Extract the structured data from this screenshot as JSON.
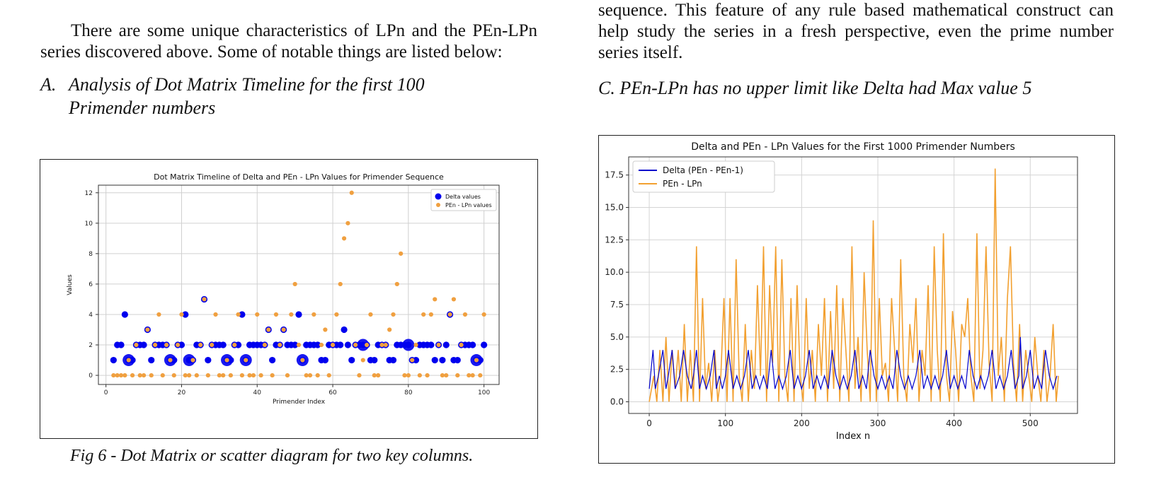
{
  "left_column": {
    "paragraph": "There are some unique characteristics of LPn and the PEn-LPn series discovered above. Some of notable things are listed below:",
    "heading_a_letter": "A.",
    "heading_a_line1": "Analysis of Dot Matrix Timeline for the first 100",
    "heading_a_line2": "Primender numbers",
    "caption": "Fig 6 -  Dot Matrix or scatter diagram for two key columns."
  },
  "right_column": {
    "paragraph": "sequence. This feature of any rule based mathematical construct can help study the series in a fresh perspective, even the prime number series itself.",
    "heading_c": "C.  PEn-LPn has no upper limit like Delta had Max value 5"
  },
  "chart_data": [
    {
      "type": "scatter",
      "title": "Dot Matrix Timeline of Delta and PEn - LPn Values for Primender Sequence",
      "xlabel": "Primender Index",
      "ylabel": "Values",
      "xlim": [
        -2,
        104
      ],
      "ylim": [
        -0.6,
        12.5
      ],
      "xticks": [
        0,
        20,
        40,
        60,
        80,
        100
      ],
      "yticks": [
        0,
        2,
        4,
        6,
        8,
        10,
        12
      ],
      "legend": "top-right",
      "grid": true,
      "series": [
        {
          "name": "Delta values",
          "color": "#0000ee",
          "x": [
            2,
            3,
            4,
            5,
            6,
            7,
            8,
            9,
            10,
            11,
            12,
            13,
            14,
            15,
            16,
            17,
            18,
            19,
            20,
            21,
            22,
            23,
            24,
            25,
            26,
            27,
            28,
            29,
            30,
            31,
            32,
            33,
            34,
            35,
            36,
            37,
            38,
            39,
            40,
            41,
            42,
            43,
            44,
            45,
            46,
            47,
            48,
            49,
            50,
            51,
            52,
            53,
            54,
            55,
            56,
            57,
            58,
            59,
            60,
            61,
            62,
            63,
            64,
            65,
            66,
            67,
            68,
            69,
            70,
            71,
            72,
            73,
            74,
            75,
            76,
            77,
            78,
            79,
            80,
            81,
            82,
            83,
            84,
            85,
            86,
            87,
            88,
            89,
            90,
            91,
            92,
            93,
            94,
            95,
            96,
            97,
            98,
            99,
            100
          ],
          "values": [
            1,
            2,
            2,
            4,
            1,
            1,
            2,
            2,
            2,
            3,
            1,
            2,
            2,
            2,
            2,
            1,
            1,
            2,
            2,
            4,
            1,
            1,
            2,
            2,
            5,
            1,
            2,
            2,
            2,
            2,
            1,
            1,
            2,
            2,
            4,
            1,
            2,
            2,
            2,
            2,
            2,
            3,
            1,
            2,
            2,
            3,
            2,
            2,
            2,
            4,
            1,
            2,
            2,
            2,
            2,
            1,
            1,
            2,
            2,
            2,
            2,
            3,
            2,
            1,
            2,
            2,
            2,
            2,
            1,
            1,
            2,
            2,
            2,
            1,
            1,
            2,
            2,
            2,
            2,
            1,
            1,
            2,
            2,
            2,
            2,
            1,
            2,
            1,
            2,
            4,
            1,
            1,
            2,
            2,
            2,
            2,
            1,
            1,
            2
          ],
          "big_rings_x": [
            6,
            17,
            22,
            32,
            37,
            52,
            68,
            80,
            98
          ]
        },
        {
          "name": "PEn - LPn values",
          "color": "#f0a040",
          "x": [
            2,
            3,
            4,
            5,
            6,
            7,
            8,
            9,
            10,
            11,
            12,
            13,
            14,
            15,
            16,
            17,
            18,
            19,
            20,
            21,
            22,
            23,
            24,
            25,
            26,
            27,
            28,
            29,
            30,
            31,
            32,
            33,
            34,
            35,
            36,
            37,
            38,
            39,
            40,
            41,
            42,
            43,
            44,
            45,
            46,
            47,
            48,
            49,
            50,
            51,
            52,
            53,
            54,
            55,
            56,
            57,
            58,
            59,
            60,
            61,
            62,
            63,
            64,
            65,
            66,
            67,
            68,
            69,
            70,
            71,
            72,
            73,
            74,
            75,
            76,
            77,
            78,
            79,
            80,
            81,
            82,
            83,
            84,
            85,
            86,
            87,
            88,
            89,
            90,
            91,
            92,
            93,
            94,
            95,
            96,
            97,
            98,
            99,
            100
          ],
          "values": [
            0,
            0,
            0,
            0,
            1,
            0,
            2,
            0,
            0,
            3,
            0,
            2,
            4,
            0,
            2,
            1,
            0,
            2,
            4,
            0,
            0,
            1,
            0,
            2,
            5,
            0,
            2,
            4,
            0,
            0,
            1,
            0,
            2,
            4,
            0,
            1,
            0,
            0,
            4,
            0,
            2,
            3,
            0,
            4,
            2,
            3,
            0,
            4,
            6,
            2,
            1,
            0,
            0,
            4,
            0,
            2,
            3,
            0,
            2,
            4,
            6,
            9,
            10,
            12,
            2,
            0,
            1,
            2,
            4,
            0,
            0,
            2,
            2,
            3,
            4,
            6,
            8,
            0,
            0,
            1,
            2,
            0,
            4,
            0,
            4,
            5,
            2,
            0,
            0,
            4,
            5,
            0,
            2,
            4,
            0,
            0,
            1,
            0,
            4
          ]
        }
      ]
    },
    {
      "type": "line",
      "title": "Delta and PEn - LPn Values for the First 1000 Primender Numbers",
      "xlabel": "Index n",
      "ylabel": "",
      "xlim": [
        -27,
        562
      ],
      "ylim": [
        -0.9,
        18.9
      ],
      "xticks": [
        0,
        100,
        200,
        300,
        400,
        500
      ],
      "yticks": [
        0.0,
        2.5,
        5.0,
        7.5,
        10.0,
        12.5,
        15.0,
        17.5
      ],
      "legend": "top-left",
      "grid": true,
      "series": [
        {
          "name": "Delta (PEn - PEn-1)",
          "color": "#0000cc",
          "x": [
            0,
            5,
            8,
            12,
            18,
            22,
            25,
            30,
            34,
            40,
            45,
            50,
            55,
            58,
            62,
            66,
            70,
            75,
            80,
            85,
            88,
            92,
            96,
            100,
            104,
            110,
            115,
            120,
            125,
            130,
            135,
            140,
            145,
            150,
            155,
            160,
            165,
            170,
            175,
            180,
            185,
            190,
            195,
            200,
            205,
            210,
            215,
            220,
            225,
            230,
            235,
            240,
            245,
            250,
            255,
            260,
            265,
            270,
            275,
            280,
            285,
            290,
            295,
            300,
            305,
            310,
            315,
            320,
            325,
            330,
            335,
            340,
            345,
            350,
            355,
            360,
            365,
            370,
            375,
            380,
            385,
            390,
            395,
            400,
            405,
            410,
            415,
            420,
            425,
            430,
            435,
            440,
            445,
            450,
            455,
            460,
            465,
            470,
            475,
            480,
            485,
            487,
            490,
            495,
            500,
            505,
            510,
            515,
            520,
            525,
            530,
            535
          ],
          "values": [
            1,
            4,
            1,
            2,
            4,
            1,
            2,
            4,
            1,
            2,
            4,
            2,
            1,
            2,
            4,
            1,
            2,
            1,
            2,
            4,
            1,
            2,
            1,
            2,
            4,
            1,
            2,
            1,
            2,
            4,
            1,
            2,
            1,
            2,
            1,
            4,
            1,
            2,
            1,
            2,
            4,
            1,
            2,
            1,
            2,
            4,
            1,
            2,
            1,
            2,
            1,
            4,
            2,
            1,
            2,
            1,
            2,
            4,
            1,
            2,
            1,
            4,
            2,
            1,
            2,
            1,
            2,
            1,
            4,
            2,
            1,
            2,
            1,
            2,
            4,
            1,
            2,
            1,
            2,
            1,
            2,
            4,
            1,
            2,
            1,
            2,
            1,
            4,
            2,
            1,
            2,
            1,
            2,
            4,
            1,
            2,
            1,
            2,
            4,
            1,
            2,
            5,
            1,
            2,
            4,
            1,
            2,
            1,
            4,
            2,
            1,
            2
          ]
        },
        {
          "name": "PEn - LPn",
          "color": "#f2a030",
          "x": [
            0,
            6,
            10,
            14,
            18,
            22,
            26,
            30,
            34,
            38,
            42,
            46,
            50,
            54,
            58,
            62,
            66,
            70,
            74,
            78,
            82,
            86,
            90,
            94,
            98,
            102,
            106,
            110,
            114,
            118,
            122,
            126,
            130,
            134,
            138,
            142,
            146,
            150,
            154,
            158,
            162,
            166,
            170,
            174,
            178,
            182,
            186,
            190,
            194,
            198,
            202,
            206,
            210,
            214,
            218,
            222,
            226,
            230,
            234,
            238,
            242,
            246,
            250,
            254,
            258,
            262,
            266,
            270,
            274,
            278,
            282,
            286,
            290,
            294,
            298,
            302,
            306,
            310,
            314,
            318,
            322,
            326,
            330,
            334,
            338,
            342,
            346,
            350,
            354,
            358,
            362,
            366,
            370,
            374,
            378,
            382,
            386,
            390,
            394,
            398,
            402,
            406,
            410,
            414,
            418,
            422,
            426,
            430,
            434,
            438,
            442,
            446,
            450,
            454,
            458,
            462,
            466,
            470,
            474,
            478,
            482,
            486,
            490,
            494,
            498,
            502,
            506,
            510,
            514,
            518,
            522,
            526,
            530,
            534,
            537
          ],
          "values": [
            0,
            2,
            0,
            4,
            0,
            5,
            0,
            4,
            1,
            4,
            0,
            6,
            0,
            4,
            0,
            12,
            0,
            8,
            1,
            3,
            0,
            4,
            0,
            2,
            8,
            0,
            8,
            0,
            11,
            2,
            0,
            6,
            0,
            4,
            1,
            9,
            2,
            12,
            0,
            9,
            3,
            12,
            0,
            11,
            2,
            0,
            8,
            0,
            9,
            2,
            0,
            8,
            1,
            4,
            0,
            6,
            2,
            8,
            0,
            7,
            1,
            9,
            0,
            8,
            4,
            0,
            12,
            1,
            5,
            0,
            10,
            4,
            0,
            14,
            0,
            8,
            2,
            3,
            0,
            8,
            4,
            0,
            11,
            2,
            0,
            6,
            3,
            8,
            0,
            4,
            2,
            9,
            0,
            12,
            4,
            0,
            13,
            2,
            0,
            7,
            4,
            0,
            6,
            5,
            8,
            2,
            0,
            13,
            1,
            4,
            12,
            3,
            0,
            18,
            2,
            5,
            0,
            8,
            12,
            3,
            0,
            6,
            0,
            4,
            2,
            0,
            5,
            2,
            0,
            4,
            0,
            2,
            6,
            0,
            2
          ]
        }
      ]
    }
  ]
}
